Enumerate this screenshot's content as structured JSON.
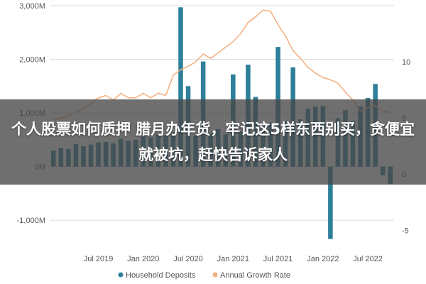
{
  "headline": "个人股票如何质押 腊月办年货，牢记这5样东西别买，贪便宜就被坑，赶快告诉家人",
  "colors": {
    "bar": "#2e7f99",
    "line": "#f4b183",
    "grid": "#dddddd",
    "banner": "#4a4a4a"
  },
  "chart_data": {
    "type": "bar",
    "title": "",
    "xlabel": "",
    "ylabel": "",
    "ylim": [
      -1500,
      3000
    ],
    "y2lim": [
      -6.5,
      15
    ],
    "grid": true,
    "legend_position": "bottom",
    "y_ticks": [
      "3,000M",
      "2,000M",
      "1,000M",
      "0M",
      "-1,000M"
    ],
    "y_tick_values": [
      3000,
      2000,
      1000,
      0,
      -1000
    ],
    "y2_ticks": [
      "10",
      "5",
      "0",
      "-5"
    ],
    "y2_tick_values": [
      10,
      5,
      0,
      -5
    ],
    "x_ticks": [
      "Jul 2019",
      "Jan 2020",
      "Jul 2020",
      "Jan 2021",
      "Jul 2021",
      "Jan 2022",
      "Jul 2022"
    ],
    "x_tick_index": [
      6,
      12,
      18,
      24,
      30,
      36,
      42
    ],
    "series": [
      {
        "name": "Household Deposits",
        "kind": "bar",
        "axis": "left",
        "values": [
          300,
          350,
          330,
          420,
          380,
          410,
          450,
          460,
          430,
          520,
          480,
          500,
          560,
          540,
          600,
          580,
          640,
          2970,
          1500,
          580,
          1960,
          620,
          700,
          600,
          1720,
          650,
          1900,
          1300,
          780,
          820,
          2230,
          850,
          1850,
          880,
          1080,
          1120,
          1130,
          -1350,
          900,
          1050,
          850,
          1120,
          1280,
          1540,
          -160,
          -320
        ]
      },
      {
        "name": "Annual Growth Rate",
        "kind": "line",
        "axis": "right",
        "values": [
          4.8,
          5.0,
          5.2,
          5.5,
          5.8,
          6.3,
          6.8,
          7.0,
          6.6,
          7.2,
          6.8,
          6.8,
          7.2,
          6.8,
          7.2,
          7.0,
          8.8,
          9.3,
          9.6,
          10.0,
          10.7,
          10.3,
          10.8,
          11.3,
          11.8,
          12.5,
          13.5,
          14.0,
          14.6,
          14.5,
          13.3,
          12.3,
          11.0,
          10.3,
          9.5,
          9.0,
          8.6,
          8.4,
          8.1,
          7.3,
          6.6,
          5.6,
          5.9,
          6.1,
          5.6,
          5.5
        ]
      }
    ]
  },
  "legend": [
    {
      "label": "Household Deposits",
      "color": "#2e7f99"
    },
    {
      "label": "Annual Growth Rate",
      "color": "#f4b183"
    }
  ]
}
